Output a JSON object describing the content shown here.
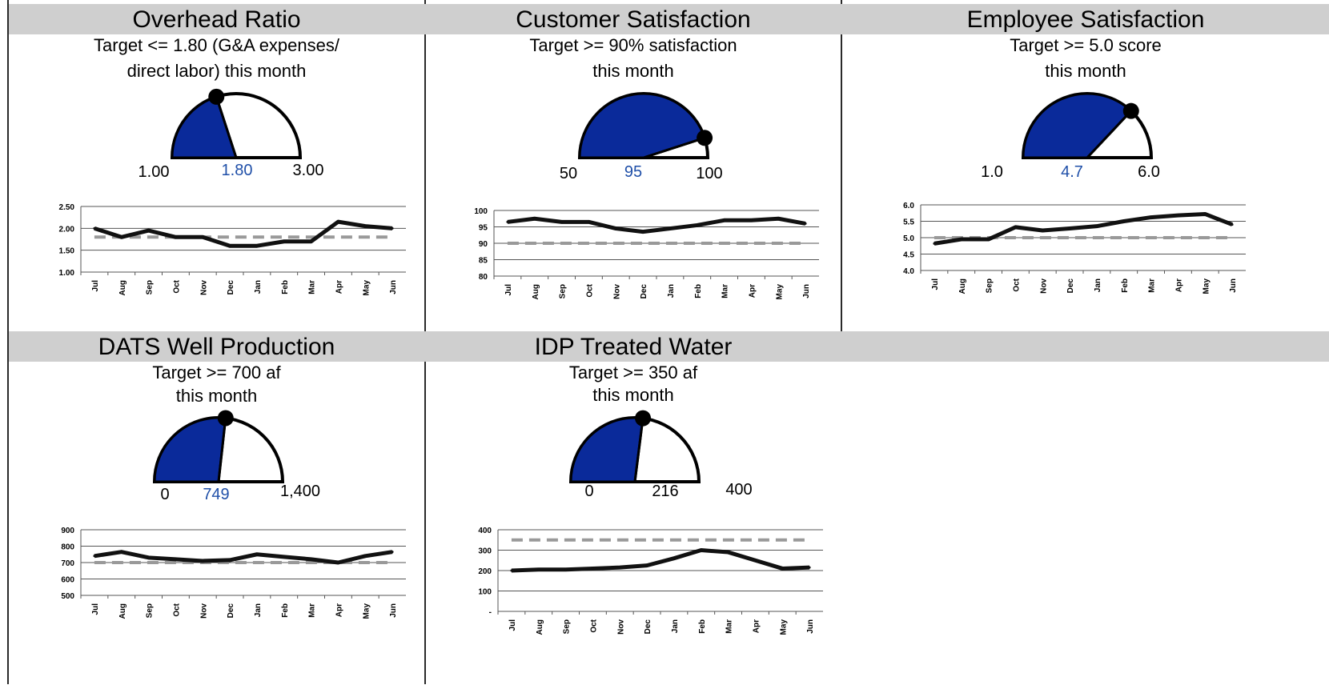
{
  "colors": {
    "fill": "#0a2a9a",
    "target_line": "#999999",
    "actual_line": "#111111",
    "header": "#cfcfcf",
    "value_blue": "#1f4fa8"
  },
  "panels": [
    {
      "title": "Overhead Ratio",
      "target_lines": [
        "Target <= 1.80 (G&A expenses/",
        "direct labor) this month"
      ],
      "gauge": {
        "min": 1.0,
        "max": 3.0,
        "value": 1.8,
        "min_label": "1.00",
        "value_label": "1.80",
        "max_label": "3.00",
        "value_blue": true
      }
    },
    {
      "title": "Customer Satisfaction",
      "target_lines": [
        "Target >= 90% satisfaction",
        "this month"
      ],
      "gauge": {
        "min": 50,
        "max": 100,
        "value": 95,
        "min_label": "50",
        "value_label": "95",
        "max_label": "100",
        "value_blue": true
      }
    },
    {
      "title": "Employee Satisfaction",
      "target_lines": [
        "Target >= 5.0 score",
        "this month"
      ],
      "gauge": {
        "min": 1.0,
        "max": 6.0,
        "value": 4.7,
        "min_label": "1.0",
        "value_label": "4.7",
        "max_label": "6.0",
        "value_blue": true
      }
    },
    {
      "title": "DATS Well Production",
      "target_lines": [
        "Target >= 700 af",
        "this month"
      ],
      "gauge": {
        "min": 0,
        "max": 1400,
        "value": 749,
        "min_label": "0",
        "value_label": "749",
        "max_label": "1,400",
        "value_blue": true
      }
    },
    {
      "title": "IDP Treated Water",
      "target_lines": [
        "Target >= 350 af",
        "this month"
      ],
      "gauge": {
        "min": 0,
        "max": 400,
        "value": 216,
        "min_label": "0",
        "value_label": "216",
        "max_label": "400",
        "value_blue": false
      }
    }
  ],
  "chart_data": [
    {
      "type": "line",
      "categories": [
        "Jul",
        "Aug",
        "Sep",
        "Oct",
        "Nov",
        "Dec",
        "Jan",
        "Feb",
        "Mar",
        "Apr",
        "May",
        "Jun"
      ],
      "ylim": [
        1.0,
        2.5
      ],
      "yticks": [
        "1.00",
        "1.50",
        "2.00",
        "2.50"
      ],
      "series": [
        {
          "values": [
            2.0,
            1.8,
            1.95,
            1.8,
            1.8,
            1.6,
            1.6,
            1.7,
            1.7,
            2.15,
            2.05,
            2.0
          ]
        },
        {
          "values": [
            1.8,
            1.8,
            1.8,
            1.8,
            1.8,
            1.8,
            1.8,
            1.8,
            1.8,
            1.8,
            1.8,
            1.8
          ]
        }
      ]
    },
    {
      "type": "line",
      "categories": [
        "Jul",
        "Aug",
        "Sep",
        "Oct",
        "Nov",
        "Dec",
        "Jan",
        "Feb",
        "Mar",
        "Apr",
        "May",
        "Jun"
      ],
      "ylim": [
        80,
        100
      ],
      "yticks": [
        "80",
        "85",
        "90",
        "95",
        "100"
      ],
      "series": [
        {
          "values": [
            96.5,
            97.5,
            96.5,
            96.5,
            94.5,
            93.5,
            94.5,
            95.5,
            97,
            97,
            97.5,
            96
          ]
        },
        {
          "values": [
            90,
            90,
            90,
            90,
            90,
            90,
            90,
            90,
            90,
            90,
            90,
            90
          ]
        }
      ]
    },
    {
      "type": "line",
      "categories": [
        "Jul",
        "Aug",
        "Sep",
        "Oct",
        "Nov",
        "Dec",
        "Jan",
        "Feb",
        "Mar",
        "Apr",
        "May",
        "Jun"
      ],
      "ylim": [
        4.0,
        6.0
      ],
      "yticks": [
        "4.0",
        "4.5",
        "5.0",
        "5.5",
        "6.0"
      ],
      "series": [
        {
          "values": [
            4.82,
            4.95,
            4.95,
            5.32,
            5.22,
            5.28,
            5.35,
            5.5,
            5.62,
            5.68,
            5.72,
            5.4
          ]
        },
        {
          "values": [
            5.0,
            5.0,
            5.0,
            5.0,
            5.0,
            5.0,
            5.0,
            5.0,
            5.0,
            5.0,
            5.0,
            5.0
          ]
        }
      ]
    },
    {
      "type": "line",
      "categories": [
        "Jul",
        "Aug",
        "Sep",
        "Oct",
        "Nov",
        "Dec",
        "Jan",
        "Feb",
        "Mar",
        "Apr",
        "May",
        "Jun"
      ],
      "ylim": [
        500,
        900
      ],
      "yticks": [
        "500",
        "600",
        "700",
        "800",
        "900"
      ],
      "series": [
        {
          "values": [
            740,
            765,
            730,
            720,
            710,
            715,
            750,
            735,
            720,
            700,
            740,
            765
          ]
        },
        {
          "values": [
            700,
            700,
            700,
            700,
            700,
            700,
            700,
            700,
            700,
            700,
            700,
            700
          ]
        }
      ]
    },
    {
      "type": "line",
      "categories": [
        "Jul",
        "Aug",
        "Sep",
        "Oct",
        "Nov",
        "Dec",
        "Jan",
        "Feb",
        "Mar",
        "Apr",
        "May",
        "Jun"
      ],
      "ylim": [
        0,
        400
      ],
      "yticks": [
        "-",
        "100",
        "200",
        "300",
        "400"
      ],
      "series": [
        {
          "values": [
            200,
            205,
            205,
            210,
            215,
            225,
            260,
            300,
            290,
            250,
            210,
            215
          ]
        },
        {
          "values": [
            350,
            350,
            350,
            350,
            350,
            350,
            350,
            350,
            350,
            350,
            350,
            350
          ]
        }
      ]
    }
  ]
}
